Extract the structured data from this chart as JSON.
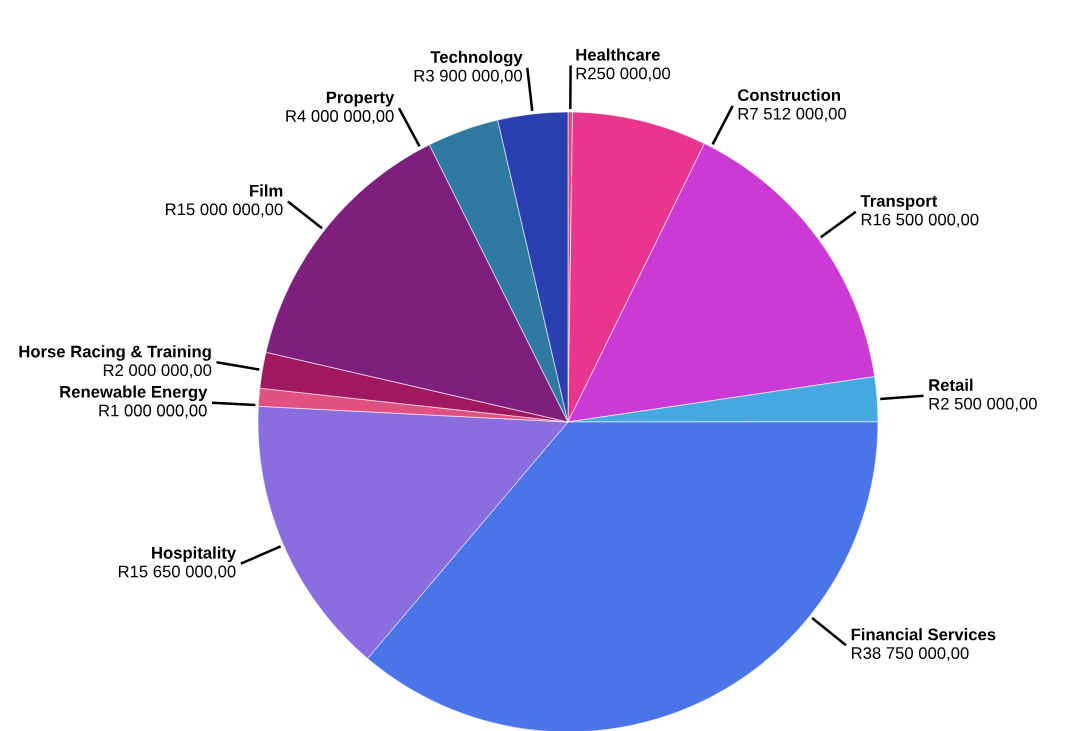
{
  "chart_data": {
    "type": "pie",
    "categories": [
      "Healthcare",
      "Construction",
      "Transport",
      "Retail",
      "Financial Services",
      "Hospitality",
      "Renewable Energy",
      "Horse Racing & Training",
      "Film",
      "Property",
      "Technology"
    ],
    "values": [
      250000,
      7512000,
      16500000,
      2500000,
      38750000,
      15650000,
      1000000,
      2000000,
      15000000,
      4000000,
      3900000
    ],
    "value_labels": [
      "R250 000,00",
      "R7 512 000,00",
      "R16 500 000,00",
      "R2 500 000,00",
      "R38 750 000,00",
      "R15 650 000,00",
      "R1 000 000,00",
      "R2 000 000,00",
      "R15 000 000,00",
      "R4 000 000,00",
      "R3 900 000,00"
    ],
    "colors": [
      "#e8407a",
      "#e8368f",
      "#cc3ad6",
      "#45a8e0",
      "#4a74e8",
      "#8a6ee0",
      "#e05080",
      "#a01860",
      "#7e1f7e",
      "#2e7aa0",
      "#2a40b0"
    ]
  }
}
